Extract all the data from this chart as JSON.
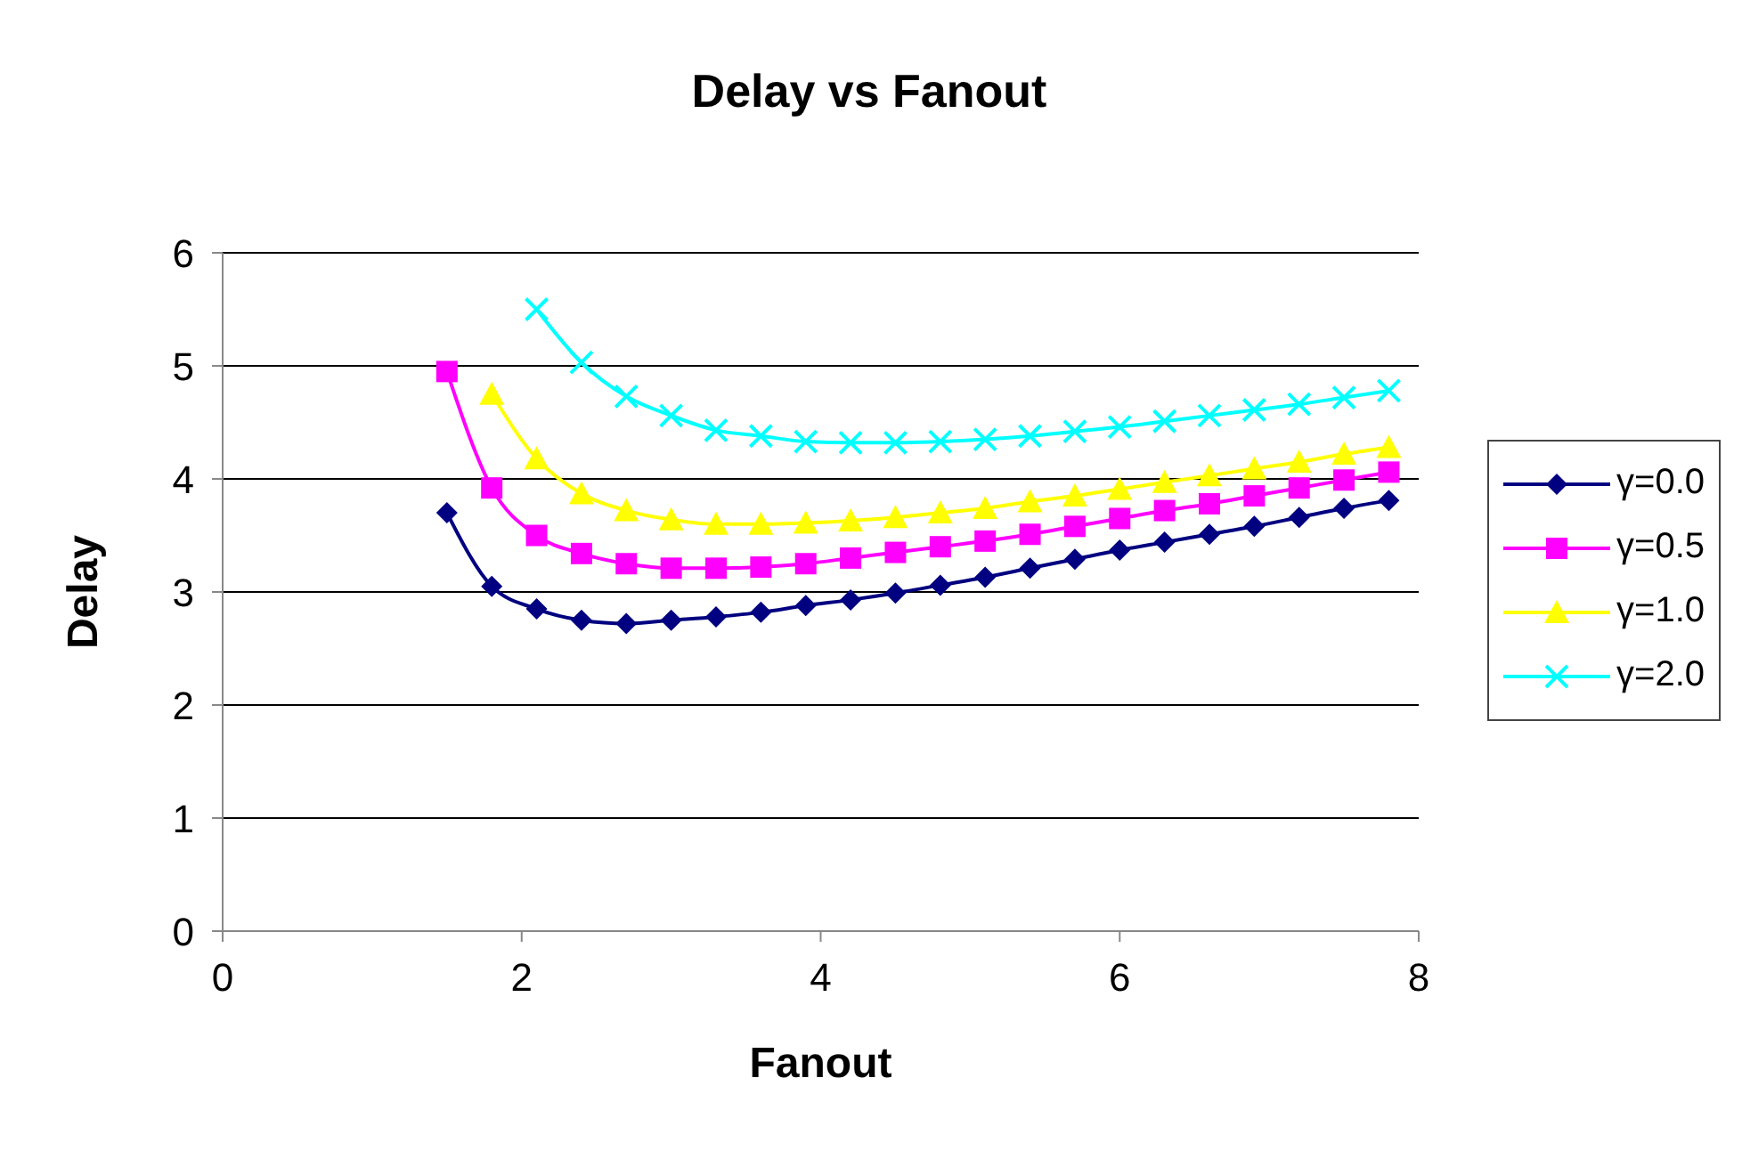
{
  "chart_data": {
    "type": "line",
    "title": "Delay vs Fanout",
    "xlabel": "Fanout",
    "ylabel": "Delay",
    "x": [
      1.5,
      1.8,
      2.1,
      2.4,
      2.7,
      3.0,
      3.3,
      3.6,
      3.9,
      4.2,
      4.5,
      4.8,
      5.1,
      5.4,
      5.7,
      6.0,
      6.3,
      6.6,
      6.9,
      7.2,
      7.5,
      7.8
    ],
    "series": [
      {
        "name": "γ=0.0",
        "color": "#000080",
        "marker": "diamond",
        "values": [
          3.7,
          3.05,
          2.85,
          2.75,
          2.72,
          2.75,
          2.78,
          2.82,
          2.88,
          2.93,
          2.99,
          3.06,
          3.13,
          3.21,
          3.29,
          3.37,
          3.44,
          3.51,
          3.58,
          3.66,
          3.74,
          3.81
        ]
      },
      {
        "name": "γ=0.5",
        "color": "#ff00ff",
        "marker": "square",
        "values": [
          4.95,
          3.92,
          3.5,
          3.34,
          3.25,
          3.21,
          3.21,
          3.22,
          3.25,
          3.3,
          3.35,
          3.4,
          3.45,
          3.51,
          3.58,
          3.65,
          3.72,
          3.78,
          3.85,
          3.92,
          3.99,
          4.06
        ]
      },
      {
        "name": "γ=1.0",
        "color": "#ffff00",
        "marker": "triangle",
        "values": [
          null,
          4.75,
          4.18,
          3.87,
          3.72,
          3.64,
          3.6,
          3.6,
          3.61,
          3.63,
          3.66,
          3.7,
          3.74,
          3.8,
          3.85,
          3.91,
          3.97,
          4.03,
          4.09,
          4.15,
          4.22,
          4.28
        ]
      },
      {
        "name": "γ=2.0",
        "color": "#00ffff",
        "marker": "cross",
        "values": [
          null,
          null,
          5.5,
          5.03,
          4.73,
          4.56,
          4.43,
          4.38,
          4.33,
          4.32,
          4.32,
          4.33,
          4.35,
          4.38,
          4.42,
          4.46,
          4.51,
          4.56,
          4.61,
          4.66,
          4.72,
          4.78
        ]
      }
    ],
    "xlim": [
      0,
      8
    ],
    "xticks": [
      0,
      2,
      4,
      6,
      8
    ],
    "ylim": [
      0,
      6
    ],
    "yticks": [
      0,
      1,
      2,
      3,
      4,
      5,
      6
    ],
    "grid": "y",
    "legend": "right",
    "line_style": "solid"
  }
}
